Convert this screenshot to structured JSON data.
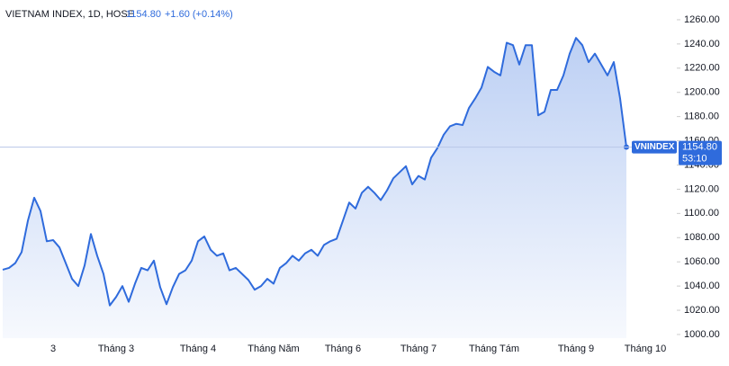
{
  "chart_data": {
    "type": "area",
    "title": "VIETNAM INDEX, 1D, HOSE",
    "price": "1154.80",
    "change": "+1.60 (+0.14%)",
    "series_tag": "VNINDEX",
    "last_price_label": "1154.80",
    "countdown": "53:10",
    "color": "#2f6bdc",
    "ylim": [
      997,
      1276.3
    ],
    "yticks": [
      {
        "value": 1000,
        "label": "1000.00"
      },
      {
        "value": 1020,
        "label": "1020.00"
      },
      {
        "value": 1040,
        "label": "1040.00"
      },
      {
        "value": 1060,
        "label": "1060.00"
      },
      {
        "value": 1080,
        "label": "1080.00"
      },
      {
        "value": 1100,
        "label": "1100.00"
      },
      {
        "value": 1120,
        "label": "1120.00"
      },
      {
        "value": 1140,
        "label": "1140.00"
      },
      {
        "value": 1160,
        "label": "1160.00"
      },
      {
        "value": 1180,
        "label": "1180.00"
      },
      {
        "value": 1200,
        "label": "1200.00"
      },
      {
        "value": 1220,
        "label": "1220.00"
      },
      {
        "value": 1240,
        "label": "1240.00"
      },
      {
        "value": 1260,
        "label": "1260.00"
      }
    ],
    "categories": [
      null,
      null,
      null,
      null,
      null,
      null,
      null,
      null,
      "3",
      null,
      null,
      null,
      null,
      null,
      null,
      null,
      null,
      null,
      "Tháng 3",
      null,
      null,
      null,
      null,
      null,
      null,
      null,
      null,
      null,
      null,
      null,
      null,
      "Tháng 4",
      null,
      null,
      null,
      null,
      null,
      null,
      null,
      null,
      null,
      null,
      null,
      "Tháng Năm",
      null,
      null,
      null,
      null,
      null,
      null,
      null,
      null,
      null,
      null,
      "Tháng 6",
      null,
      null,
      null,
      null,
      null,
      null,
      null,
      null,
      null,
      null,
      null,
      "Tháng 7",
      null,
      null,
      null,
      null,
      null,
      null,
      null,
      null,
      null,
      null,
      null,
      "Tháng Tám",
      null,
      null,
      null,
      null,
      null,
      null,
      null,
      null,
      null,
      null,
      null,
      null,
      "Tháng 9",
      null,
      null,
      null,
      null,
      null,
      null,
      null,
      null,
      null,
      null,
      "Tháng 10"
    ],
    "values": [
      1053.5,
      1055,
      1059,
      1068,
      1094,
      1113,
      1102,
      1077,
      1078,
      1072,
      1059,
      1046,
      1040,
      1057,
      1083,
      1065,
      1050,
      1024,
      1031,
      1040,
      1027,
      1042,
      1055,
      1053,
      1061,
      1039,
      1025,
      1039,
      1050,
      1053,
      1061,
      1077,
      1081,
      1070,
      1065,
      1067,
      1053,
      1055,
      1050,
      1045,
      1037,
      1040,
      1046,
      1042,
      1055,
      1059,
      1065,
      1061,
      1067,
      1070,
      1065,
      1074,
      1077,
      1079,
      1094,
      1109,
      1104,
      1117,
      1122,
      1117,
      1111,
      1119,
      1129,
      1134,
      1139,
      1124,
      1131,
      1128,
      1146,
      1154,
      1165,
      1172,
      1174,
      1173,
      1187,
      1195,
      1204,
      1221,
      1217,
      1214,
      1241,
      1239,
      1223,
      1239,
      1239,
      1181,
      1184,
      1202,
      1202,
      1214,
      1232,
      1245,
      1239,
      1225,
      1232,
      1223,
      1214,
      1225,
      1195,
      1154.8,
      null,
      null,
      null
    ],
    "last_value": 1154.8
  }
}
